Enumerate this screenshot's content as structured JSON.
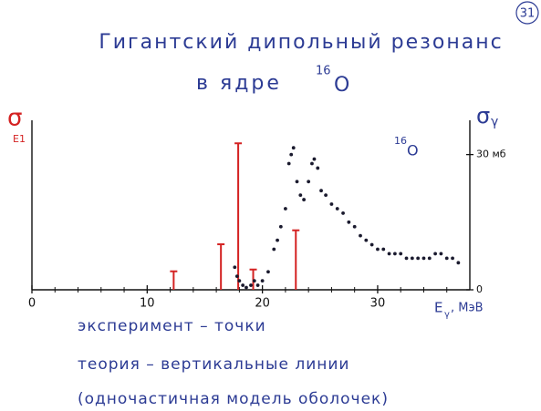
{
  "page_number": "31",
  "chart_data": {
    "type": "scatter",
    "title": "Гигантский дипольный резонанс",
    "subtitle": "в ядре",
    "subtitle_mass": "16",
    "subtitle_nucleus": "O",
    "inset_mass": "16",
    "inset_nucleus": "O",
    "left_axis_symbol": "σ",
    "left_axis_subscript": "E1",
    "right_axis_symbol": "σ",
    "right_axis_subscript": "γ",
    "x_label_symbol": "E",
    "x_label_subscript": "γ",
    "x_label_unit": ", МэВ",
    "xlim": [
      0,
      38
    ],
    "xticks": [
      0,
      10,
      20,
      30
    ],
    "xticks_minor": [
      2,
      4,
      6,
      8,
      12,
      14,
      16,
      18,
      22,
      24,
      26,
      28,
      32,
      34,
      36
    ],
    "ylim": [
      0,
      37
    ],
    "yticks": [
      0,
      {
        "value": 30,
        "label": "30 мб"
      }
    ],
    "points": {
      "color": "#1a1a2e",
      "x": [
        17.6,
        17.8,
        18.0,
        18.3,
        18.6,
        19.0,
        19.3,
        19.6,
        20.0,
        20.5,
        21.0,
        21.3,
        21.6,
        22.0,
        22.3,
        22.5,
        22.7,
        23.0,
        23.3,
        23.6,
        24.0,
        24.3,
        24.5,
        24.8,
        25.1,
        25.5,
        26.0,
        26.5,
        27.0,
        27.5,
        28.0,
        28.5,
        29.0,
        29.5,
        30.0,
        30.5,
        31.0,
        31.5,
        32.0,
        32.5,
        33.0,
        33.5,
        34.0,
        34.5,
        35.0,
        35.5,
        36.0,
        36.5,
        37.0
      ],
      "values": [
        5,
        3,
        2,
        1,
        0.5,
        1,
        2,
        1,
        2,
        4,
        9,
        11,
        14,
        18,
        28,
        30,
        31.5,
        24,
        21,
        20,
        24,
        28,
        29,
        27,
        22,
        21,
        19,
        18,
        17,
        15,
        14,
        12,
        11,
        10,
        9,
        9,
        8,
        8,
        8,
        7,
        7,
        7,
        7,
        7,
        8,
        8,
        7,
        7,
        6
      ]
    },
    "theory": {
      "color": "#d42222",
      "x": [
        12.3,
        16.4,
        17.9,
        19.2,
        22.9
      ],
      "values": [
        4.1,
        10.1,
        32.5,
        4.5,
        13.2
      ]
    },
    "legend_lines": [
      "эксперимент – точки",
      "теория – вертикальные линии",
      "(одночастичная модель оболочек)"
    ]
  }
}
